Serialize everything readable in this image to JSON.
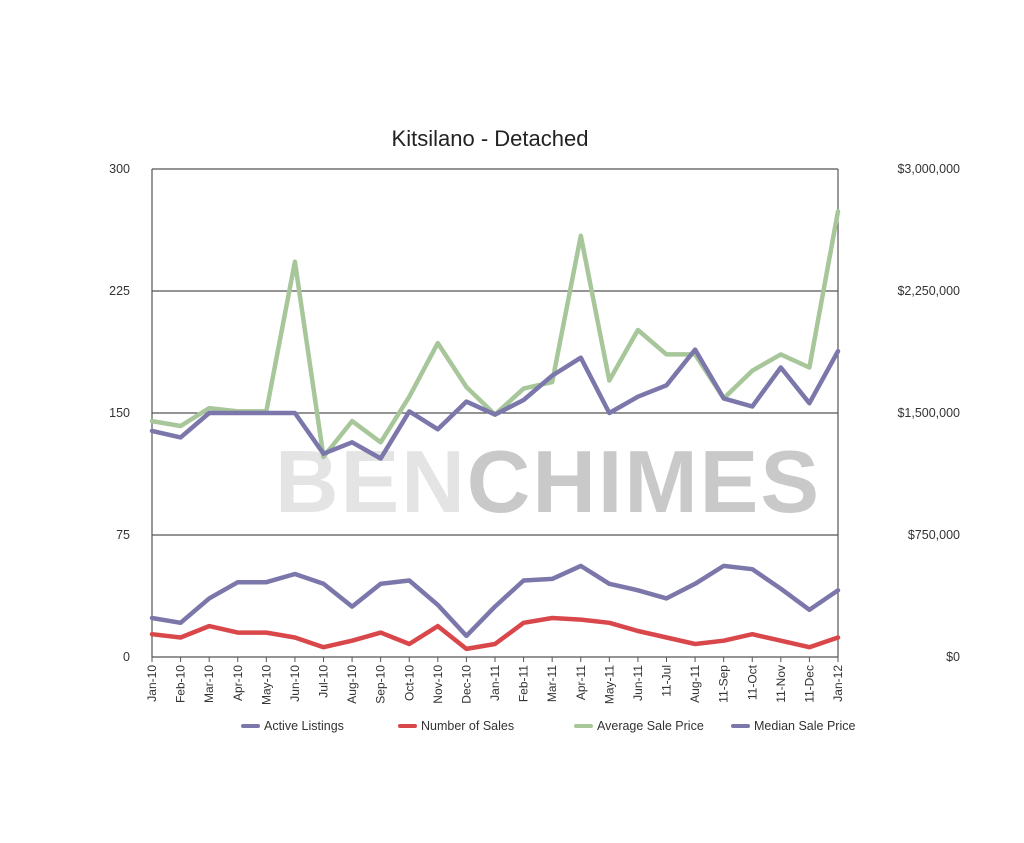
{
  "chart_data": {
    "type": "line",
    "title": "Kitsilano - Detached",
    "watermark": {
      "part1": "BEN",
      "part2": "CHIMES"
    },
    "categories": [
      "Jan-10",
      "Feb-10",
      "Mar-10",
      "Apr-10",
      "May-10",
      "Jun-10",
      "Jul-10",
      "Aug-10",
      "Sep-10",
      "Oct-10",
      "Nov-10",
      "Dec-10",
      "Jan-11",
      "Feb-11",
      "Mar-11",
      "Apr-11",
      "May-11",
      "Jun-11",
      "11-Jul",
      "Aug-11",
      "11-Sep",
      "11-Oct",
      "11-Nov",
      "11-Dec",
      "Jan-12"
    ],
    "left_axis": {
      "ylim": [
        0,
        300
      ],
      "ticks": [
        "300",
        "225",
        "150",
        "75",
        "0"
      ]
    },
    "right_axis": {
      "ylim": [
        0,
        3000000
      ],
      "ticks": [
        "$3,000,000",
        "$2,250,000",
        "$1,500,000",
        "$750,000",
        "$0"
      ]
    },
    "grid": true,
    "legend_position": "bottom",
    "series": [
      {
        "name": "Active Listings",
        "axis": "left",
        "color": "#7b77ab",
        "values": [
          24,
          21,
          36,
          46,
          46,
          51,
          45,
          31,
          45,
          47,
          32,
          13,
          31,
          47,
          48,
          56,
          45,
          41,
          36,
          45,
          56,
          54,
          42,
          29,
          41
        ]
      },
      {
        "name": "Number of Sales",
        "axis": "left",
        "color": "#d9474a",
        "values": [
          14,
          12,
          19,
          15,
          15,
          12,
          6,
          10,
          15,
          8,
          19,
          5,
          8,
          21,
          24,
          23,
          21,
          16,
          12,
          8,
          10,
          14,
          10,
          6,
          12
        ]
      },
      {
        "name": "Average Sale Price",
        "axis": "right",
        "color": "#a7c69a",
        "values": [
          1450000,
          1420000,
          1530000,
          1510000,
          1510000,
          2430000,
          1230000,
          1450000,
          1320000,
          1600000,
          1930000,
          1660000,
          1490000,
          1650000,
          1690000,
          2590000,
          1700000,
          2010000,
          1860000,
          1860000,
          1590000,
          1760000,
          1860000,
          1780000,
          2740000
        ]
      },
      {
        "name": "Median Sale Price",
        "axis": "right",
        "color": "#7b77ab",
        "values": [
          1390000,
          1350000,
          1500000,
          1500000,
          1500000,
          1500000,
          1250000,
          1320000,
          1220000,
          1510000,
          1400000,
          1570000,
          1490000,
          1580000,
          1730000,
          1840000,
          1500000,
          1600000,
          1670000,
          1890000,
          1590000,
          1540000,
          1780000,
          1560000,
          1880000
        ]
      }
    ]
  }
}
